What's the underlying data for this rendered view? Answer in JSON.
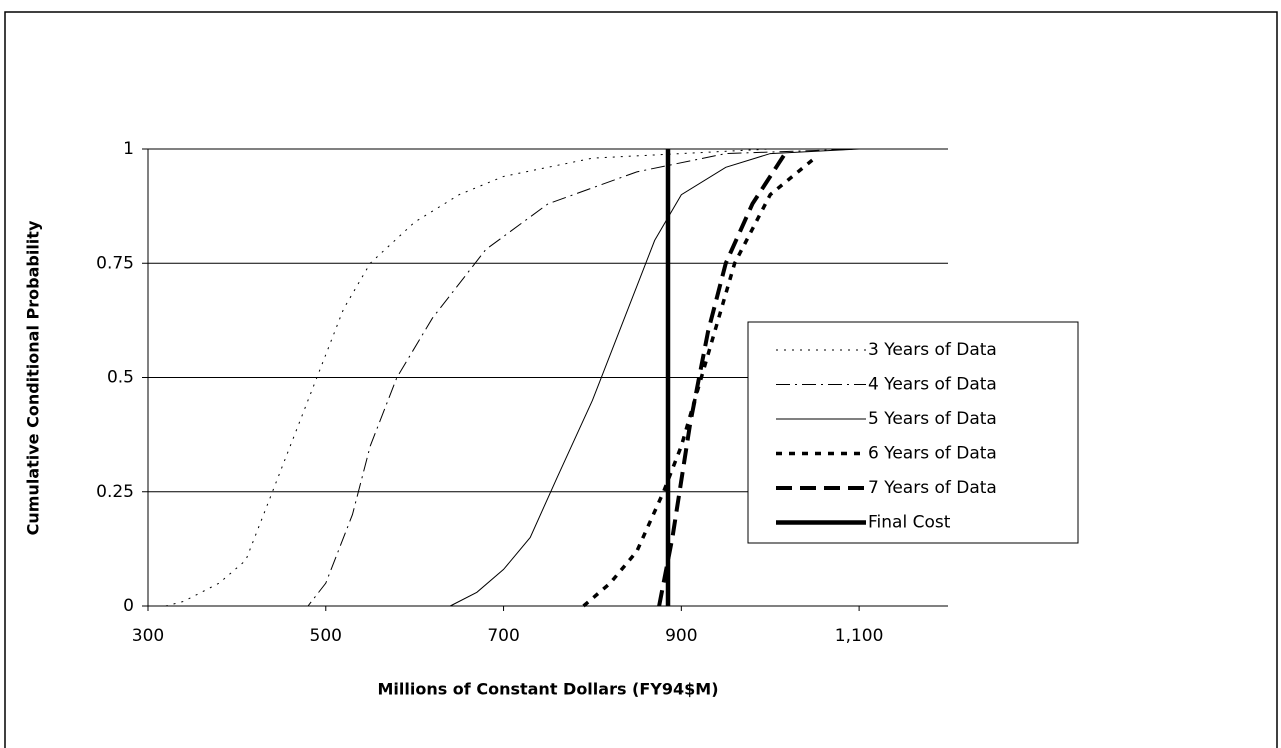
{
  "chart_data": {
    "type": "line",
    "xlabel": "Millions of Constant Dollars (FY94$M)",
    "ylabel": "Cumulative Conditional Probability",
    "xlim": [
      300,
      1200
    ],
    "ylim": [
      0,
      1
    ],
    "xticks": [
      300,
      500,
      700,
      900,
      {
        "value": 1100,
        "label": "1,100"
      }
    ],
    "yticks": [
      0,
      0.25,
      0.5,
      0.75,
      1
    ],
    "grid": true,
    "legend": "right",
    "series": [
      {
        "name": "3 Years of Data",
        "color": "#000000",
        "line_style": "dotted",
        "x": [
          320,
          340,
          380,
          410,
          440,
          470,
          490,
          520,
          550,
          600,
          650,
          700,
          800,
          900,
          1000,
          1200
        ],
        "values": [
          0,
          0.01,
          0.05,
          0.1,
          0.25,
          0.4,
          0.5,
          0.65,
          0.75,
          0.84,
          0.9,
          0.94,
          0.98,
          0.99,
          1,
          1
        ]
      },
      {
        "name": "4 Years of Data",
        "color": "#000000",
        "line_style": "dashdot",
        "x": [
          470,
          480,
          500,
          530,
          550,
          580,
          620,
          680,
          750,
          850,
          950,
          1100,
          1200
        ],
        "values": [
          0,
          0,
          0.05,
          0.2,
          0.35,
          0.5,
          0.63,
          0.78,
          0.88,
          0.95,
          0.99,
          1,
          1
        ]
      },
      {
        "name": "5 Years of Data",
        "color": "#000000",
        "line_style": "solid",
        "x": [
          640,
          670,
          700,
          730,
          760,
          800,
          840,
          870,
          900,
          950,
          1000,
          1100,
          1200
        ],
        "values": [
          0,
          0.03,
          0.08,
          0.15,
          0.28,
          0.45,
          0.65,
          0.8,
          0.9,
          0.96,
          0.99,
          1,
          1
        ]
      },
      {
        "name": "6 Years of Data",
        "color": "#000000",
        "line_style": "heavy-dotted",
        "x": [
          790,
          820,
          850,
          880,
          900,
          930,
          960,
          1000,
          1050
        ],
        "values": [
          0,
          0.05,
          0.12,
          0.25,
          0.35,
          0.55,
          0.75,
          0.9,
          0.98
        ]
      },
      {
        "name": "7 Years of Data",
        "color": "#000000",
        "line_style": "heavy-dashed",
        "x": [
          875,
          890,
          910,
          930,
          950,
          980,
          1010,
          1020
        ],
        "values": [
          0,
          0.15,
          0.4,
          0.6,
          0.75,
          0.88,
          0.97,
          1
        ]
      },
      {
        "name": "Final Cost",
        "color": "#000000",
        "line_style": "heavy-solid",
        "x": [
          885,
          885
        ],
        "values": [
          0,
          1
        ]
      }
    ]
  }
}
